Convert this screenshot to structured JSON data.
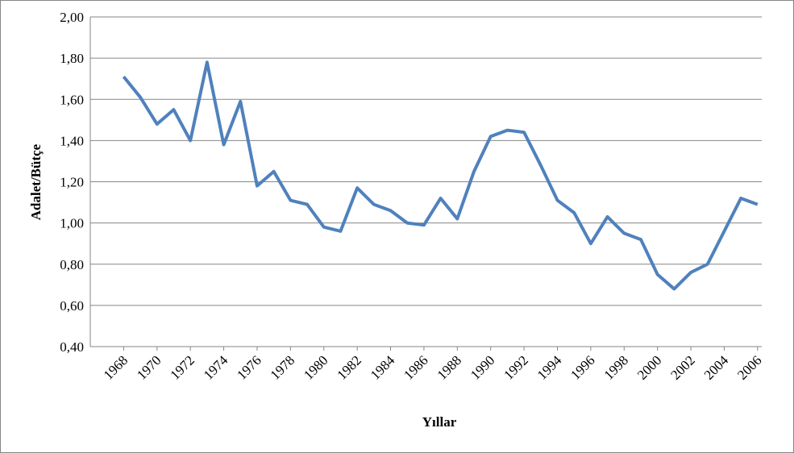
{
  "chart_data": {
    "type": "line",
    "y_label": "Adalet/Bütçe",
    "x_label": "Yıllar",
    "x": [
      1968,
      1969,
      1970,
      1971,
      1972,
      1973,
      1974,
      1975,
      1976,
      1977,
      1978,
      1979,
      1980,
      1981,
      1982,
      1983,
      1984,
      1985,
      1986,
      1987,
      1988,
      1989,
      1990,
      1991,
      1992,
      1993,
      1994,
      1995,
      1996,
      1997,
      1998,
      1999,
      2000,
      2001,
      2002,
      2003,
      2004,
      2005,
      2006
    ],
    "values": [
      1.71,
      1.61,
      1.48,
      1.55,
      1.4,
      1.78,
      1.38,
      1.59,
      1.18,
      1.25,
      1.11,
      1.09,
      0.98,
      0.96,
      1.17,
      1.09,
      1.06,
      1.0,
      0.99,
      1.12,
      1.02,
      1.25,
      1.42,
      1.45,
      1.44,
      1.28,
      1.11,
      1.05,
      0.9,
      1.03,
      0.95,
      0.92,
      0.75,
      0.68,
      0.76,
      0.8,
      0.96,
      1.12,
      1.09
    ],
    "color": "#4f81bd",
    "xlim": [
      1966,
      2006.25
    ],
    "xticks": [
      1968,
      1970,
      1972,
      1974,
      1976,
      1978,
      1980,
      1982,
      1984,
      1986,
      1988,
      1990,
      1992,
      1994,
      1996,
      1998,
      2000,
      2002,
      2004,
      2006
    ],
    "ylim": [
      0.4,
      2.0
    ],
    "yticks": [
      {
        "value": 0.4,
        "label": "0,40"
      },
      {
        "value": 0.6,
        "label": "0,60"
      },
      {
        "value": 0.8,
        "label": "0,80"
      },
      {
        "value": 1.0,
        "label": "1,00"
      },
      {
        "value": 1.2,
        "label": "1,20"
      },
      {
        "value": 1.4,
        "label": "1,40"
      },
      {
        "value": 1.6,
        "label": "1,60"
      },
      {
        "value": 1.8,
        "label": "1,80"
      },
      {
        "value": 2.0,
        "label": "2,00"
      }
    ],
    "grid": true
  }
}
